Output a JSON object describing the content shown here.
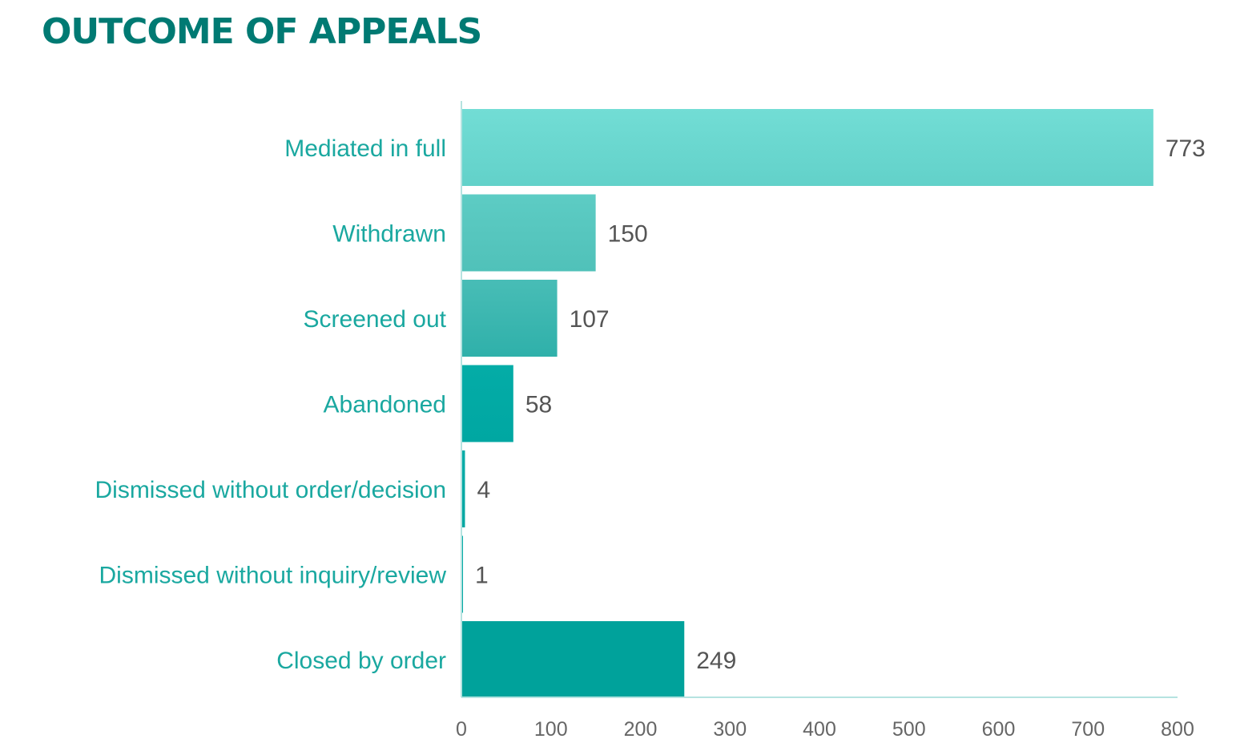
{
  "title": "OUTCOME OF APPEALS",
  "chart_data": {
    "type": "bar",
    "orientation": "horizontal",
    "title": "OUTCOME OF APPEALS",
    "categories": [
      "Mediated in full",
      "Withdrawn",
      "Screened out",
      "Abandoned",
      "Dismissed without order/decision",
      "Dismissed without inquiry/review",
      "Closed by order"
    ],
    "values": [
      773,
      150,
      107,
      58,
      4,
      1,
      249
    ],
    "data_labels": [
      "773",
      "150",
      "107",
      "58",
      "4",
      "1",
      "249"
    ],
    "xlim": [
      0,
      800
    ],
    "x_ticks": [
      "0",
      "100",
      "200",
      "300",
      "400",
      "500",
      "600",
      "700",
      "800"
    ],
    "xlabel": "",
    "ylabel": "",
    "grid": false,
    "legend": "none",
    "colors": {
      "title": "#007a73",
      "category_label": "#1aa8a0",
      "value_label": "#555555",
      "tick_label": "#666666",
      "axis": "#b5e3e0",
      "bars_top": [
        "#72ddd5",
        "#5dccc4",
        "#48bdb6",
        "#04aca7",
        "#04aca7",
        "#04aca7",
        "#00a29b"
      ],
      "bars_bottom": [
        "#62d1c9",
        "#50c1b9",
        "#2fb0aa",
        "#00a7a2",
        "#00a7a2",
        "#00a7a2",
        "#00a29b"
      ]
    }
  }
}
